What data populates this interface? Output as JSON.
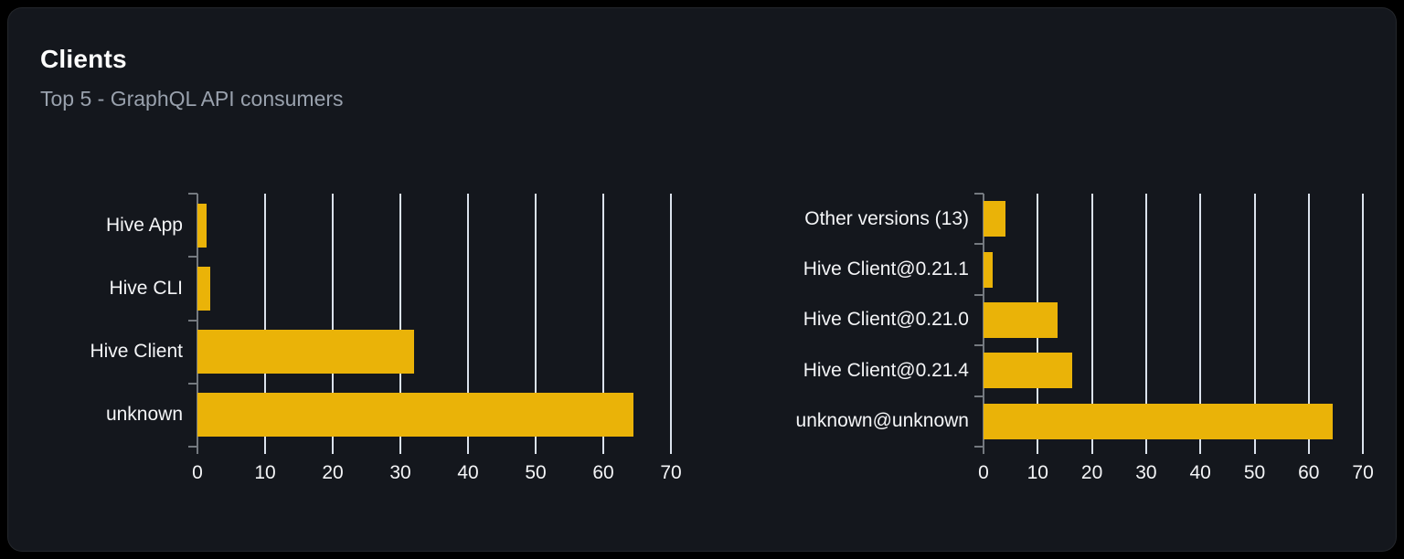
{
  "card": {
    "title": "Clients",
    "subtitle": "Top 5 - GraphQL API consumers"
  },
  "colors": {
    "bar": "#eab308",
    "page_background": "#000000",
    "card_background": "#14171d",
    "gridline": "#dbe2ec",
    "axis": "#74797f",
    "title_text": "#ffffff",
    "subtitle_text": "#99a1ad",
    "label_text": "#f4f5f7"
  },
  "chart_data": [
    {
      "type": "bar",
      "orientation": "horizontal",
      "categories": [
        "Hive App",
        "Hive CLI",
        "Hive Client",
        "unknown"
      ],
      "values": [
        1.3,
        1.9,
        32,
        64.5
      ],
      "xticks": [
        0,
        10,
        20,
        30,
        40,
        50,
        60,
        70
      ],
      "xlim": [
        0,
        70.7
      ],
      "grid": true,
      "legend": false,
      "title": "",
      "xlabel": "",
      "ylabel": ""
    },
    {
      "type": "bar",
      "orientation": "horizontal",
      "categories": [
        "Other versions (13)",
        "Hive Client@0.21.1",
        "Hive Client@0.21.0",
        "Hive Client@0.21.4",
        "unknown@unknown"
      ],
      "values": [
        4,
        1.7,
        13.7,
        16.4,
        64.5
      ],
      "xticks": [
        0,
        10,
        20,
        30,
        40,
        50,
        60,
        70
      ],
      "xlim": [
        0,
        70.8
      ],
      "grid": true,
      "legend": false,
      "title": "",
      "xlabel": "",
      "ylabel": ""
    }
  ]
}
